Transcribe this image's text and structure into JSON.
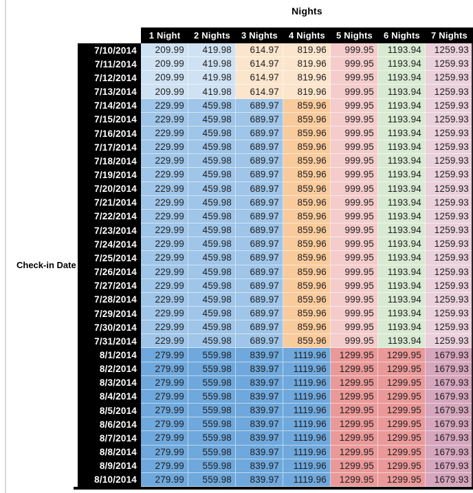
{
  "title": "Nights",
  "left_axis_label": "Check-in Date",
  "columns": [
    "1 Night",
    "2 Nights",
    "3 Nights",
    "4 Nights",
    "5 Nights",
    "6 Nights",
    "7 Nights"
  ],
  "palette": {
    "header_bg": "#000000",
    "header_text": "#FFFFFF",
    "light_blue_3": "#CFE2F3",
    "light_blue_2": "#9FC5E8",
    "light_blue_1": "#6FA8DC",
    "light_orange_3": "#FCE5CD",
    "light_orange_2": "#F9CB9C",
    "light_red_3": "#F4CCCC",
    "light_red_2": "#EA9999",
    "light_green_3": "#D9EAD3",
    "light_magenta_3": "#EAD1DC",
    "light_magenta_2": "#D5A6BD"
  },
  "groups": {
    "early_july": {
      "values": [
        "209.99",
        "419.98",
        "614.97",
        "819.96",
        "999.95",
        "1193.94",
        "1259.93"
      ],
      "colors": [
        "light_blue_3",
        "light_blue_3",
        "light_orange_3",
        "light_orange_3",
        "light_red_3",
        "light_green_3",
        "light_magenta_3"
      ]
    },
    "mid_july": {
      "values": [
        "229.99",
        "459.98",
        "689.97",
        "859.96",
        "999.95",
        "1193.94",
        "1259.93"
      ],
      "colors": [
        "light_blue_2",
        "light_blue_2",
        "light_blue_2",
        "light_orange_2",
        "light_red_3",
        "light_green_3",
        "light_magenta_3"
      ]
    },
    "august": {
      "values": [
        "279.99",
        "559.98",
        "839.97",
        "1119.96",
        "1299.95",
        "1299.95",
        "1679.93"
      ],
      "colors": [
        "light_blue_1",
        "light_blue_1",
        "light_blue_1",
        "light_blue_1",
        "light_red_2",
        "light_red_2",
        "light_magenta_2"
      ]
    }
  },
  "rows": [
    {
      "date": "7/10/2014",
      "group": "early_july"
    },
    {
      "date": "7/11/2014",
      "group": "early_july"
    },
    {
      "date": "7/12/2014",
      "group": "early_july"
    },
    {
      "date": "7/13/2014",
      "group": "early_july"
    },
    {
      "date": "7/14/2014",
      "group": "mid_july"
    },
    {
      "date": "7/15/2014",
      "group": "mid_july"
    },
    {
      "date": "7/16/2014",
      "group": "mid_july"
    },
    {
      "date": "7/17/2014",
      "group": "mid_july"
    },
    {
      "date": "7/18/2014",
      "group": "mid_july"
    },
    {
      "date": "7/19/2014",
      "group": "mid_july"
    },
    {
      "date": "7/20/2014",
      "group": "mid_july"
    },
    {
      "date": "7/21/2014",
      "group": "mid_july"
    },
    {
      "date": "7/22/2014",
      "group": "mid_july"
    },
    {
      "date": "7/23/2014",
      "group": "mid_july"
    },
    {
      "date": "7/24/2014",
      "group": "mid_july"
    },
    {
      "date": "7/25/2014",
      "group": "mid_july"
    },
    {
      "date": "7/26/2014",
      "group": "mid_july"
    },
    {
      "date": "7/27/2014",
      "group": "mid_july"
    },
    {
      "date": "7/28/2014",
      "group": "mid_july"
    },
    {
      "date": "7/29/2014",
      "group": "mid_july"
    },
    {
      "date": "7/30/2014",
      "group": "mid_july"
    },
    {
      "date": "7/31/2014",
      "group": "mid_july"
    },
    {
      "date": "8/1/2014",
      "group": "august"
    },
    {
      "date": "8/2/2014",
      "group": "august"
    },
    {
      "date": "8/3/2014",
      "group": "august"
    },
    {
      "date": "8/4/2014",
      "group": "august"
    },
    {
      "date": "8/5/2014",
      "group": "august"
    },
    {
      "date": "8/6/2014",
      "group": "august"
    },
    {
      "date": "8/7/2014",
      "group": "august"
    },
    {
      "date": "8/8/2014",
      "group": "august"
    },
    {
      "date": "8/9/2014",
      "group": "august"
    },
    {
      "date": "8/10/2014",
      "group": "august"
    }
  ]
}
